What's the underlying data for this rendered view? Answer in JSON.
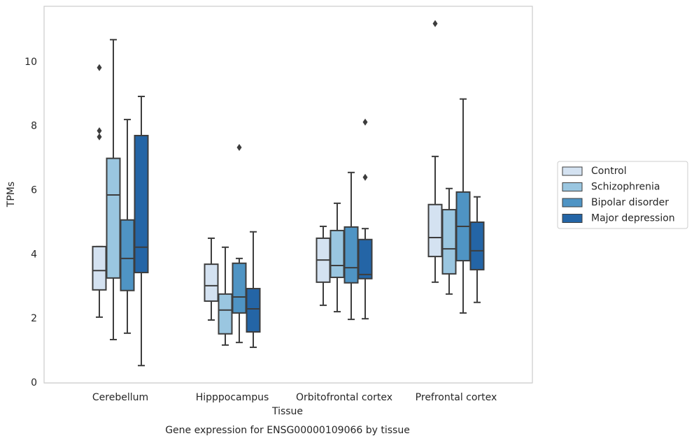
{
  "chart_data": {
    "type": "box",
    "title": "Gene expression for ENSG00000109066 by tissue",
    "x_label": "Tissue",
    "y_label": "TPMs",
    "categories": [
      "Cerebellum",
      "Hipppocampus",
      "Orbitofrontal cortex",
      "Prefrontal cortex"
    ],
    "ylim": [
      0,
      11.74
    ],
    "yticks": [
      0,
      2,
      4,
      6,
      8,
      10
    ],
    "grid": true,
    "legend": "right",
    "series": [
      {
        "name": "Control",
        "color": "#d4e2f1",
        "values": [
          {
            "whislo": 2.05,
            "q1": 2.9,
            "med": 3.5,
            "q3": 4.25,
            "whishi": 4.25,
            "fliers": [
              9.83,
              7.86,
              7.67
            ]
          },
          {
            "whislo": 1.96,
            "q1": 2.55,
            "med": 3.03,
            "q3": 3.7,
            "whishi": 4.51
          },
          {
            "whislo": 2.42,
            "q1": 3.14,
            "med": 3.83,
            "q3": 4.51,
            "whishi": 4.88
          },
          {
            "whislo": 3.14,
            "q1": 3.94,
            "med": 4.53,
            "q3": 5.56,
            "whishi": 7.06,
            "fliers": [
              11.2
            ]
          }
        ]
      },
      {
        "name": "Schizophrenia",
        "color": "#9ac6e0",
        "values": [
          {
            "whislo": 1.35,
            "q1": 3.27,
            "med": 5.86,
            "q3": 7.0,
            "whishi": 10.7
          },
          {
            "whislo": 1.18,
            "q1": 1.53,
            "med": 2.27,
            "q3": 2.77,
            "whishi": 4.23
          },
          {
            "whislo": 2.22,
            "q1": 3.29,
            "med": 3.66,
            "q3": 4.75,
            "whishi": 5.6
          },
          {
            "whislo": 2.77,
            "q1": 3.4,
            "med": 4.18,
            "q3": 5.4,
            "whishi": 6.06
          }
        ]
      },
      {
        "name": "Bipolar disorder",
        "color": "#4f94c4",
        "values": [
          {
            "whislo": 1.55,
            "q1": 2.88,
            "med": 3.88,
            "q3": 5.08,
            "whishi": 8.21
          },
          {
            "whislo": 1.26,
            "q1": 2.18,
            "med": 2.68,
            "q3": 3.73,
            "whishi": 3.88,
            "fliers": [
              7.34
            ]
          },
          {
            "whislo": 1.98,
            "q1": 3.12,
            "med": 3.59,
            "q3": 4.86,
            "whishi": 6.56
          },
          {
            "whislo": 2.18,
            "q1": 3.81,
            "med": 4.88,
            "q3": 5.95,
            "whishi": 8.85
          }
        ]
      },
      {
        "name": "Major depression",
        "color": "#2465a6",
        "values": [
          {
            "whislo": 0.54,
            "q1": 3.44,
            "med": 4.23,
            "q3": 7.71,
            "whishi": 8.93
          },
          {
            "whislo": 1.11,
            "q1": 1.59,
            "med": 2.31,
            "q3": 2.94,
            "whishi": 4.71
          },
          {
            "whislo": 2.0,
            "q1": 3.25,
            "med": 3.38,
            "q3": 4.47,
            "whishi": 4.81,
            "fliers": [
              8.13,
              6.41
            ]
          },
          {
            "whislo": 2.51,
            "q1": 3.53,
            "med": 4.12,
            "q3": 5.01,
            "whishi": 5.8
          }
        ]
      }
    ]
  }
}
